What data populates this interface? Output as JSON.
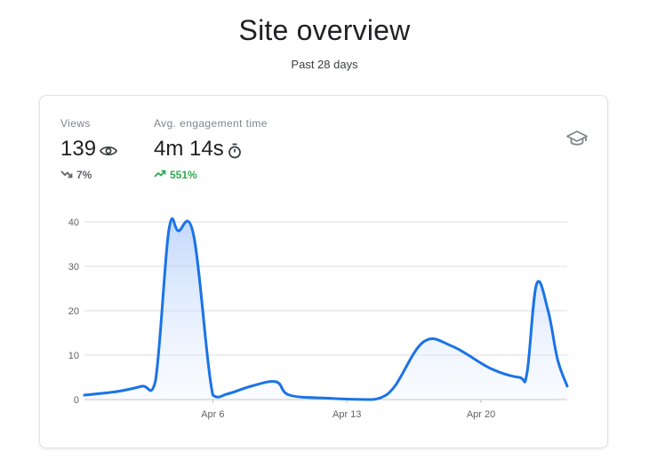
{
  "header": {
    "title": "Site overview",
    "subtitle": "Past 28 days"
  },
  "metrics": {
    "views": {
      "label": "Views",
      "value": "139",
      "icon": "eye-icon",
      "change": "7%",
      "trend": "down"
    },
    "engagement": {
      "label": "Avg. engagement time",
      "value": "4m 14s",
      "icon": "stopwatch-icon",
      "change": "551%",
      "trend": "up"
    }
  },
  "card_icon": "graduation-cap-icon",
  "colors": {
    "line": "#1a73e8",
    "fill_top": "#aecbfa",
    "grid": "#dadce0",
    "up": "#34a853",
    "down": "#5f6368"
  },
  "chart_data": {
    "type": "area",
    "y_ticks": [
      0,
      10,
      20,
      30,
      40
    ],
    "ylim": [
      0,
      40
    ],
    "x_tick_labels": [
      {
        "label": "Apr 6",
        "day": 6
      },
      {
        "label": "Apr 13",
        "day": 13
      },
      {
        "label": "Apr 20",
        "day": 20
      }
    ],
    "xlim": [
      -0.7,
      24.5
    ],
    "series": [
      {
        "points": [
          [
            -0.7,
            1
          ],
          [
            1,
            1.8
          ],
          [
            2.3,
            3
          ],
          [
            3,
            4
          ],
          [
            3.7,
            38
          ],
          [
            4.2,
            38
          ],
          [
            5,
            37
          ],
          [
            6,
            1
          ],
          [
            6.8,
            1.3
          ],
          [
            8,
            3
          ],
          [
            9.3,
            4
          ],
          [
            10,
            1
          ],
          [
            12,
            0.3
          ],
          [
            14,
            0
          ],
          [
            14.7,
            0.3
          ],
          [
            15.5,
            3
          ],
          [
            17,
            13
          ],
          [
            18.5,
            12
          ],
          [
            20.5,
            7
          ],
          [
            22,
            5
          ],
          [
            22.4,
            6
          ],
          [
            22.9,
            26
          ],
          [
            23.5,
            20
          ],
          [
            24,
            9
          ],
          [
            24.5,
            3
          ]
        ]
      }
    ]
  }
}
